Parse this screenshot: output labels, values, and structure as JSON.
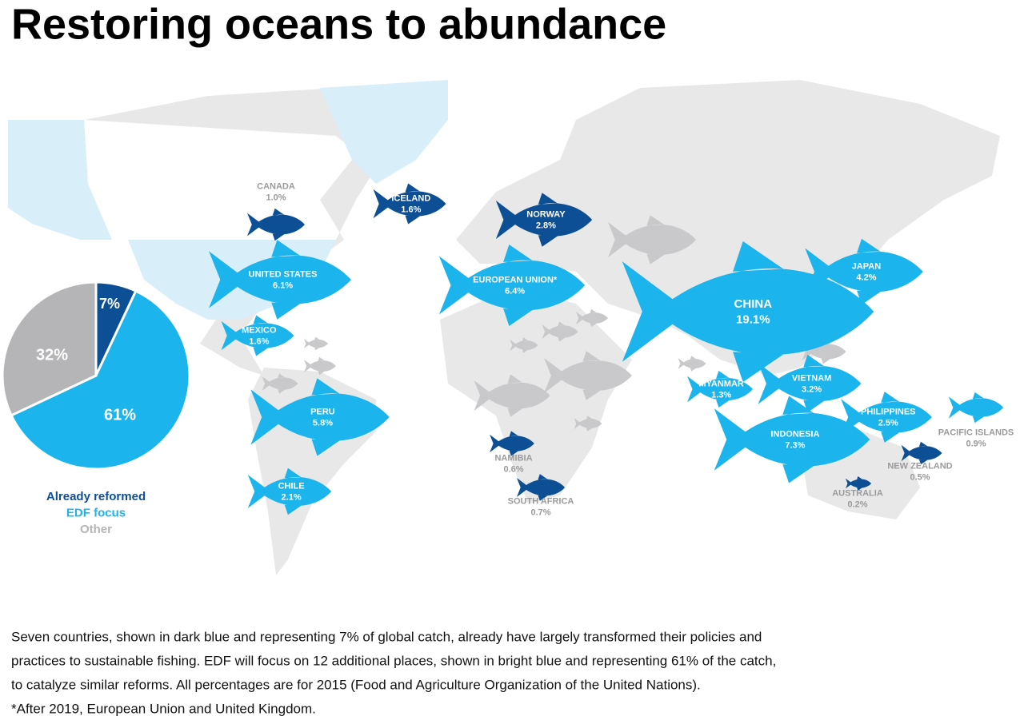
{
  "title": "Restoring oceans to abundance",
  "chart_data": {
    "type": "pie",
    "categories": [
      "Already reformed",
      "EDF focus",
      "Other"
    ],
    "values": [
      7,
      61,
      32
    ],
    "value_labels": [
      "7%",
      "61%",
      "32%"
    ],
    "colors": [
      "#0d4f94",
      "#1bb4ec",
      "#b5b5b7"
    ]
  },
  "map": {
    "names": [
      "CANADA",
      "ICELAND",
      "NORWAY",
      "UNITED STATES",
      "EUROPEAN UNION*",
      "JAPAN",
      "CHINA",
      "MEXICO",
      "PERU",
      "CHILE",
      "MYANMAR",
      "VIETNAM",
      "PHILIPPINES",
      "INDONESIA",
      "PACIFIC ISLANDS",
      "NAMIBIA",
      "SOUTH AFRICA",
      "NEW ZEALAND",
      "AUSTRALIA"
    ],
    "values": [
      1.0,
      1.6,
      2.8,
      6.1,
      6.4,
      4.2,
      19.1,
      1.6,
      5.8,
      2.1,
      1.3,
      3.2,
      2.5,
      7.3,
      0.9,
      0.6,
      0.7,
      0.5,
      0.2
    ],
    "value_labels": [
      "1.0%",
      "1.6%",
      "2.8%",
      "6.1%",
      "6.4%",
      "4.2%",
      "19.1%",
      "1.6%",
      "5.8%",
      "2.1%",
      "1.3%",
      "3.2%",
      "2.5%",
      "7.3%",
      "0.9%",
      "0.6%",
      "0.7%",
      "0.5%",
      "0.2%"
    ],
    "colors": [
      "#0d4f94",
      "#0d4f94",
      "#0d4f94",
      "#1bb4ec",
      "#1bb4ec",
      "#1bb4ec",
      "#1bb4ec",
      "#1bb4ec",
      "#1bb4ec",
      "#1bb4ec",
      "#1bb4ec",
      "#1bb4ec",
      "#1bb4ec",
      "#1bb4ec",
      "#1bb4ec",
      "#0d4f94",
      "#0d4f94",
      "#0d4f94",
      "#0d4f94"
    ]
  },
  "footnote": [
    "Seven countries, shown in dark blue and representing 7% of global catch, already have largely transformed their policies and",
    "practices to sustainable fishing. EDF will focus on 12 additional places, shown in bright blue and representing 61% of the catch,",
    "to catalyze similar reforms. All percentages are for 2015 (Food and Agriculture Organization of the United Nations).",
    "*After 2019, European Union and United Kingdom."
  ]
}
